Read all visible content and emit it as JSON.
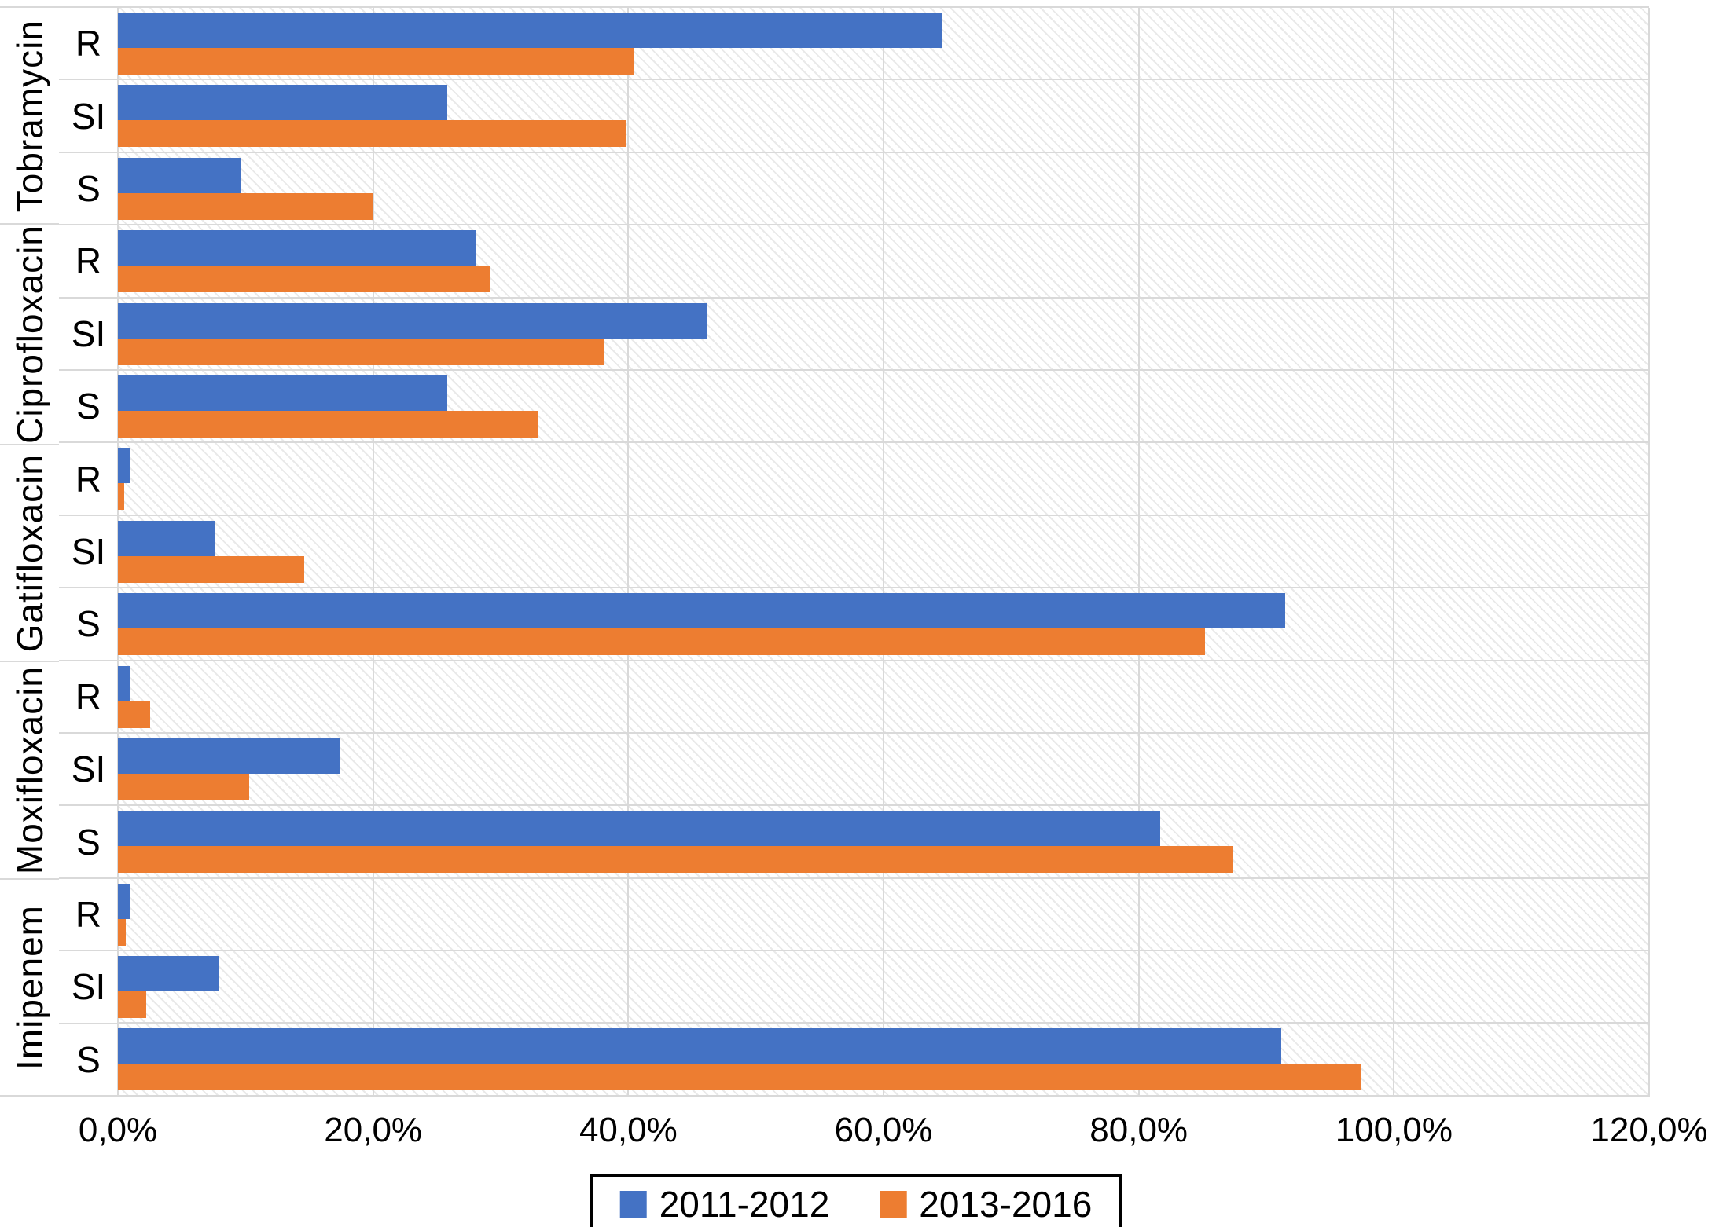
{
  "chart_data": {
    "type": "bar",
    "orientation": "horizontal",
    "title": "",
    "x_axis": {
      "tick_labels": [
        "0,0%",
        "20,0%",
        "40,0%",
        "60,0%",
        "80,0%",
        "100,0%",
        "120,0%"
      ],
      "min": 0,
      "max": 120,
      "unit": "percent",
      "grid": true
    },
    "legend": {
      "position": "bottom"
    },
    "series": [
      {
        "name": "2011-2012",
        "color": "#4472C4"
      },
      {
        "name": "2013-2016",
        "color": "#ED7D31"
      }
    ],
    "groups": [
      {
        "name": "Tobramycin",
        "rows": [
          {
            "category": "R",
            "values": [
              64.6,
              40.4
            ]
          },
          {
            "category": "SI",
            "values": [
              25.8,
              39.8
            ]
          },
          {
            "category": "S",
            "values": [
              9.6,
              20.0
            ]
          }
        ]
      },
      {
        "name": "Ciprofloxacin",
        "rows": [
          {
            "category": "R",
            "values": [
              28.0,
              29.2
            ]
          },
          {
            "category": "SI",
            "values": [
              46.2,
              38.1
            ]
          },
          {
            "category": "S",
            "values": [
              25.8,
              32.9
            ]
          }
        ]
      },
      {
        "name": "Gatifloxacin",
        "rows": [
          {
            "category": "R",
            "values": [
              1.0,
              0.5
            ]
          },
          {
            "category": "SI",
            "values": [
              7.6,
              14.6
            ]
          },
          {
            "category": "S",
            "values": [
              91.5,
              85.2
            ]
          }
        ]
      },
      {
        "name": "Moxifloxacin",
        "rows": [
          {
            "category": "R",
            "values": [
              1.0,
              2.5
            ]
          },
          {
            "category": "SI",
            "values": [
              17.4,
              10.3
            ]
          },
          {
            "category": "S",
            "values": [
              81.7,
              87.4
            ]
          }
        ]
      },
      {
        "name": "Imipenem",
        "rows": [
          {
            "category": "R",
            "values": [
              1.0,
              0.6
            ]
          },
          {
            "category": "SI",
            "values": [
              7.9,
              2.2
            ]
          },
          {
            "category": "S",
            "values": [
              91.2,
              97.4
            ]
          }
        ]
      }
    ]
  },
  "colors": {
    "series_2011_2012": "#4472C4",
    "series_2013_2016": "#ED7D31",
    "gridline": "#d9d9d9",
    "legend_border": "#000000"
  }
}
